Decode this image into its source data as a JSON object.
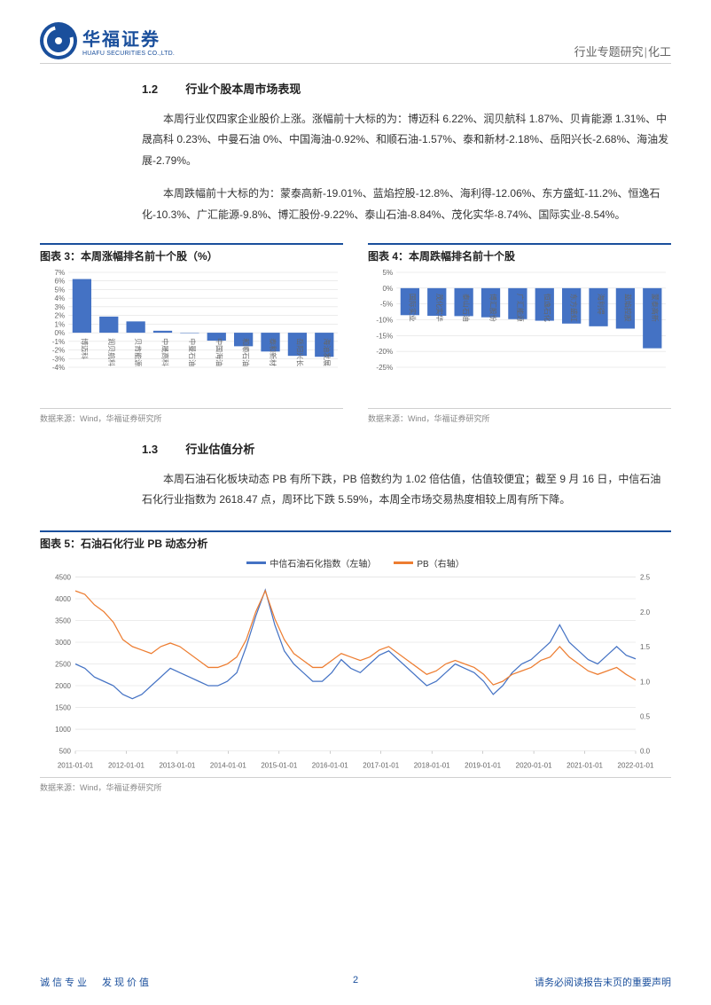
{
  "header": {
    "logo_cn": "华福证券",
    "logo_en": "HUAFU SECURITIES CO.,LTD.",
    "right_a": "行业专题研究",
    "right_sep": "|",
    "right_b": "化工"
  },
  "sec12": {
    "num": "1.2",
    "title": "行业个股本周市场表现"
  },
  "p1": "本周行业仅四家企业股价上涨。涨幅前十大标的为：博迈科 6.22%、润贝航科 1.87%、贝肯能源 1.31%、中晟高科 0.23%、中曼石油 0%、中国海油-0.92%、和顺石油-1.57%、泰和新材-2.18%、岳阳兴长-2.68%、海油发展-2.79%。",
  "p2": "本周跌幅前十大标的为：蒙泰高新-19.01%、蓝焰控股-12.8%、海利得-12.06%、东方盛虹-11.2%、恒逸石化-10.3%、广汇能源-9.8%、博汇股份-9.22%、泰山石油-8.84%、茂化实华-8.74%、国际实业-8.54%。",
  "fig3": {
    "title": "图表 3：本周涨幅排名前十个股（%）",
    "type": "bar",
    "categories": [
      "博迈科",
      "润贝航科",
      "贝肯能源",
      "中晟高科",
      "中曼石油",
      "中国海油",
      "和顺石油",
      "泰和新材",
      "岳阳兴长",
      "海油发展"
    ],
    "values": [
      6.22,
      1.87,
      1.31,
      0.23,
      0,
      -0.92,
      -1.57,
      -2.18,
      -2.68,
      -2.79
    ],
    "ylim": [
      -4,
      7
    ],
    "ytick_step": 1,
    "bar_color": "#4472c4",
    "grid_color": "#d9d9d9",
    "label_color": "#666666",
    "source": "数据来源：Wind，华福证券研究所"
  },
  "fig4": {
    "title": "图表 4：本周跌幅排名前十个股",
    "type": "bar",
    "categories": [
      "国际实业",
      "茂化实华",
      "泰山石油",
      "博汇股份",
      "广汇能源",
      "恒逸石化",
      "东方盛虹",
      "海利得",
      "蓝焰控股",
      "蒙泰高新"
    ],
    "values": [
      -8.54,
      -8.74,
      -8.84,
      -9.22,
      -9.8,
      -10.3,
      -11.2,
      -12.06,
      -12.8,
      -19.01
    ],
    "ylim": [
      -25,
      5
    ],
    "ytick_step": 5,
    "bar_color": "#4472c4",
    "grid_color": "#d9d9d9",
    "label_color": "#666666",
    "source": "数据来源：Wind，华福证券研究所"
  },
  "sec13": {
    "num": "1.3",
    "title": "行业估值分析"
  },
  "p3": "本周石油石化板块动态 PB 有所下跌，PB 倍数约为 1.02 倍估值，估值较便宜；截至 9 月 16 日，中信石油石化行业指数为 2618.47 点，周环比下跌 5.59%，本周全市场交易热度相较上周有所下降。",
  "fig5": {
    "title": "图表 5：石油石化行业 PB 动态分析",
    "type": "dual-axis-line",
    "legend": [
      {
        "label": "中信石油石化指数（左轴）",
        "color": "#4472c4"
      },
      {
        "label": "PB（右轴）",
        "color": "#ed7d31"
      }
    ],
    "xlabels": [
      "2011-01-01",
      "2012-01-01",
      "2013-01-01",
      "2014-01-01",
      "2015-01-01",
      "2016-01-01",
      "2017-01-01",
      "2018-01-01",
      "2019-01-01",
      "2020-01-01",
      "2021-01-01",
      "2022-01-01"
    ],
    "y1": {
      "lim": [
        500,
        4500
      ],
      "step": 500,
      "color": "#4472c4",
      "values": [
        2500,
        2400,
        2200,
        2100,
        2000,
        1800,
        1700,
        1800,
        2000,
        2200,
        2400,
        2300,
        2200,
        2100,
        2000,
        2000,
        2100,
        2300,
        2900,
        3600,
        4200,
        3400,
        2800,
        2500,
        2300,
        2100,
        2100,
        2300,
        2600,
        2400,
        2300,
        2500,
        2700,
        2800,
        2600,
        2400,
        2200,
        2000,
        2100,
        2300,
        2500,
        2400,
        2300,
        2100,
        1800,
        2000,
        2300,
        2500,
        2600,
        2800,
        3000,
        3400,
        3000,
        2800,
        2600,
        2500,
        2700,
        2900,
        2700,
        2618
      ]
    },
    "y2": {
      "lim": [
        0,
        2.5
      ],
      "step": 0.5,
      "color": "#ed7d31",
      "values": [
        2.3,
        2.25,
        2.1,
        2.0,
        1.85,
        1.6,
        1.5,
        1.45,
        1.4,
        1.5,
        1.55,
        1.5,
        1.4,
        1.3,
        1.2,
        1.2,
        1.25,
        1.35,
        1.6,
        2.0,
        2.3,
        1.9,
        1.6,
        1.4,
        1.3,
        1.2,
        1.2,
        1.3,
        1.4,
        1.35,
        1.3,
        1.35,
        1.45,
        1.5,
        1.4,
        1.3,
        1.2,
        1.1,
        1.15,
        1.25,
        1.3,
        1.25,
        1.2,
        1.1,
        0.95,
        1.0,
        1.1,
        1.15,
        1.2,
        1.3,
        1.35,
        1.5,
        1.35,
        1.25,
        1.15,
        1.1,
        1.15,
        1.2,
        1.1,
        1.02
      ]
    },
    "grid_color": "#d9d9d9",
    "label_color": "#666666",
    "source": "数据来源：Wind，华福证券研究所"
  },
  "footer": {
    "left": "诚信专业　发现价值",
    "page": "2",
    "right": "请务必阅读报告末页的重要声明"
  }
}
